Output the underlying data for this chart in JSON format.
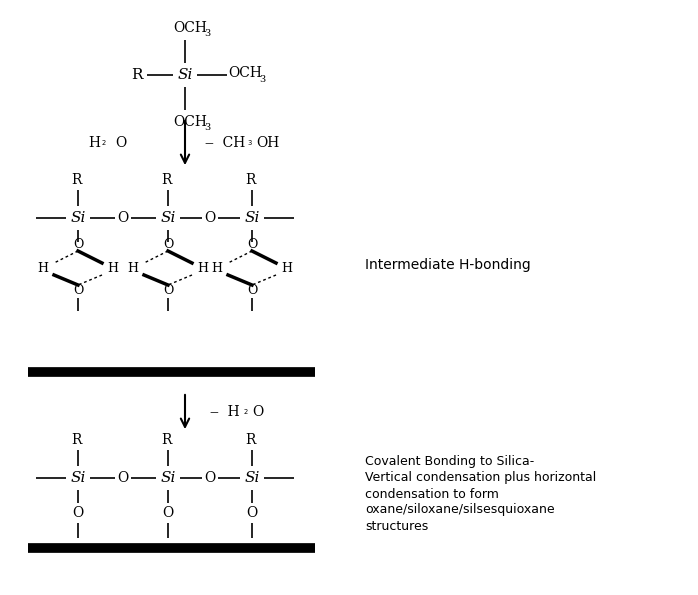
{
  "bg_color": "#ffffff",
  "text_color": "#000000",
  "line_color": "#000000",
  "figsize": [
    6.98,
    5.95
  ],
  "dpi": 100,
  "label_intermediate": "Intermediate H-bonding",
  "label_covalent_line1": "Covalent Bonding to Silica-",
  "label_covalent_line2": "Vertical condensation plus horizontal",
  "label_covalent_line3": "condensation to form",
  "label_covalent_line4": "oxane/siloxane/silsesquioxane",
  "label_covalent_line5": "structures"
}
